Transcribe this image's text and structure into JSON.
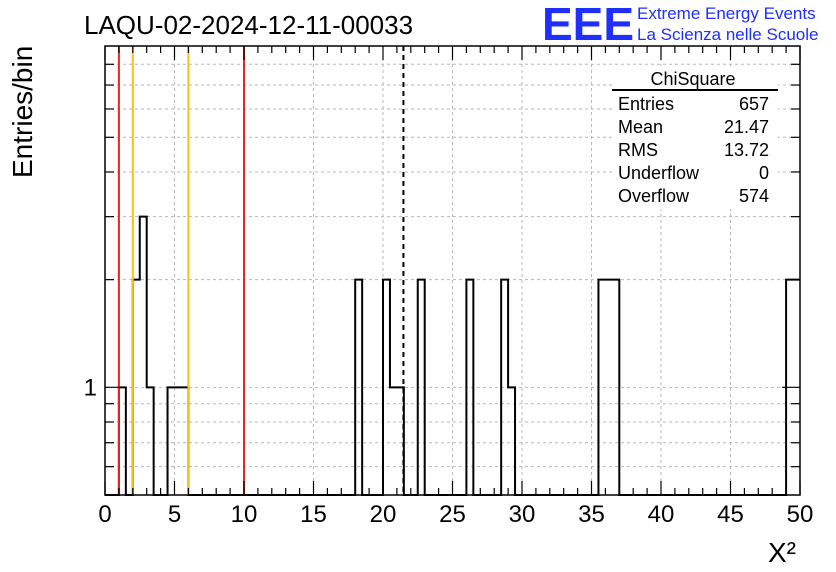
{
  "chart_data": {
    "type": "bar",
    "title": "LAQU-02-2024-12-11-00033",
    "xlabel": "X²",
    "ylabel": "Entries/bin",
    "xlim": [
      0,
      50
    ],
    "ylim": [
      0.5,
      9
    ],
    "yscale": "log",
    "grid": true,
    "bin_width": 0.5,
    "x_ticks": [
      0,
      5,
      10,
      15,
      20,
      25,
      30,
      35,
      40,
      45,
      50
    ],
    "y_tick_labels": [
      {
        "value": 1,
        "label": "1"
      }
    ],
    "values": [
      0,
      0,
      1,
      0,
      2,
      3,
      1,
      0,
      0,
      1,
      1,
      1,
      0,
      0,
      0,
      0,
      0,
      0,
      0,
      0,
      0,
      0,
      0,
      0,
      0,
      0,
      0,
      0,
      0,
      0,
      0,
      0,
      0,
      0,
      0,
      0,
      2,
      0,
      0,
      0,
      2,
      1,
      1,
      0,
      0,
      2,
      0,
      0,
      0,
      0,
      0,
      0,
      2,
      0,
      0,
      0,
      0,
      2,
      1,
      0,
      0,
      0,
      0,
      0,
      0,
      0,
      0,
      0,
      0,
      0,
      0,
      2,
      2,
      2,
      0,
      0,
      0,
      0,
      0,
      0,
      0,
      0,
      0,
      0,
      0,
      0,
      0,
      0,
      0,
      0,
      0,
      0,
      0,
      0,
      0,
      0,
      0,
      0,
      2,
      2
    ],
    "series_color": "#000000",
    "vertical_markers": [
      {
        "x": 1.0,
        "color": "#e8261f",
        "style": "solid"
      },
      {
        "x": 2.0,
        "color": "#f3c21b",
        "style": "solid"
      },
      {
        "x": 6.0,
        "color": "#f3c21b",
        "style": "solid"
      },
      {
        "x": 10.0,
        "color": "#e8261f",
        "style": "solid"
      },
      {
        "x": 21.47,
        "color": "#000000",
        "style": "dashed"
      }
    ],
    "stats_box": {
      "title": "ChiSquare",
      "rows": [
        {
          "label": "Entries",
          "value": "657"
        },
        {
          "label": "Mean",
          "value": "21.47"
        },
        {
          "label": "RMS",
          "value": "13.72"
        },
        {
          "label": "Underflow",
          "value": "0"
        },
        {
          "label": "Overflow",
          "value": "574"
        }
      ]
    }
  },
  "logo": {
    "mark": "EEE",
    "line1": "Extreme Energy Events",
    "line2": "La Scienza nelle Scuole",
    "color": "#1f2fff"
  }
}
